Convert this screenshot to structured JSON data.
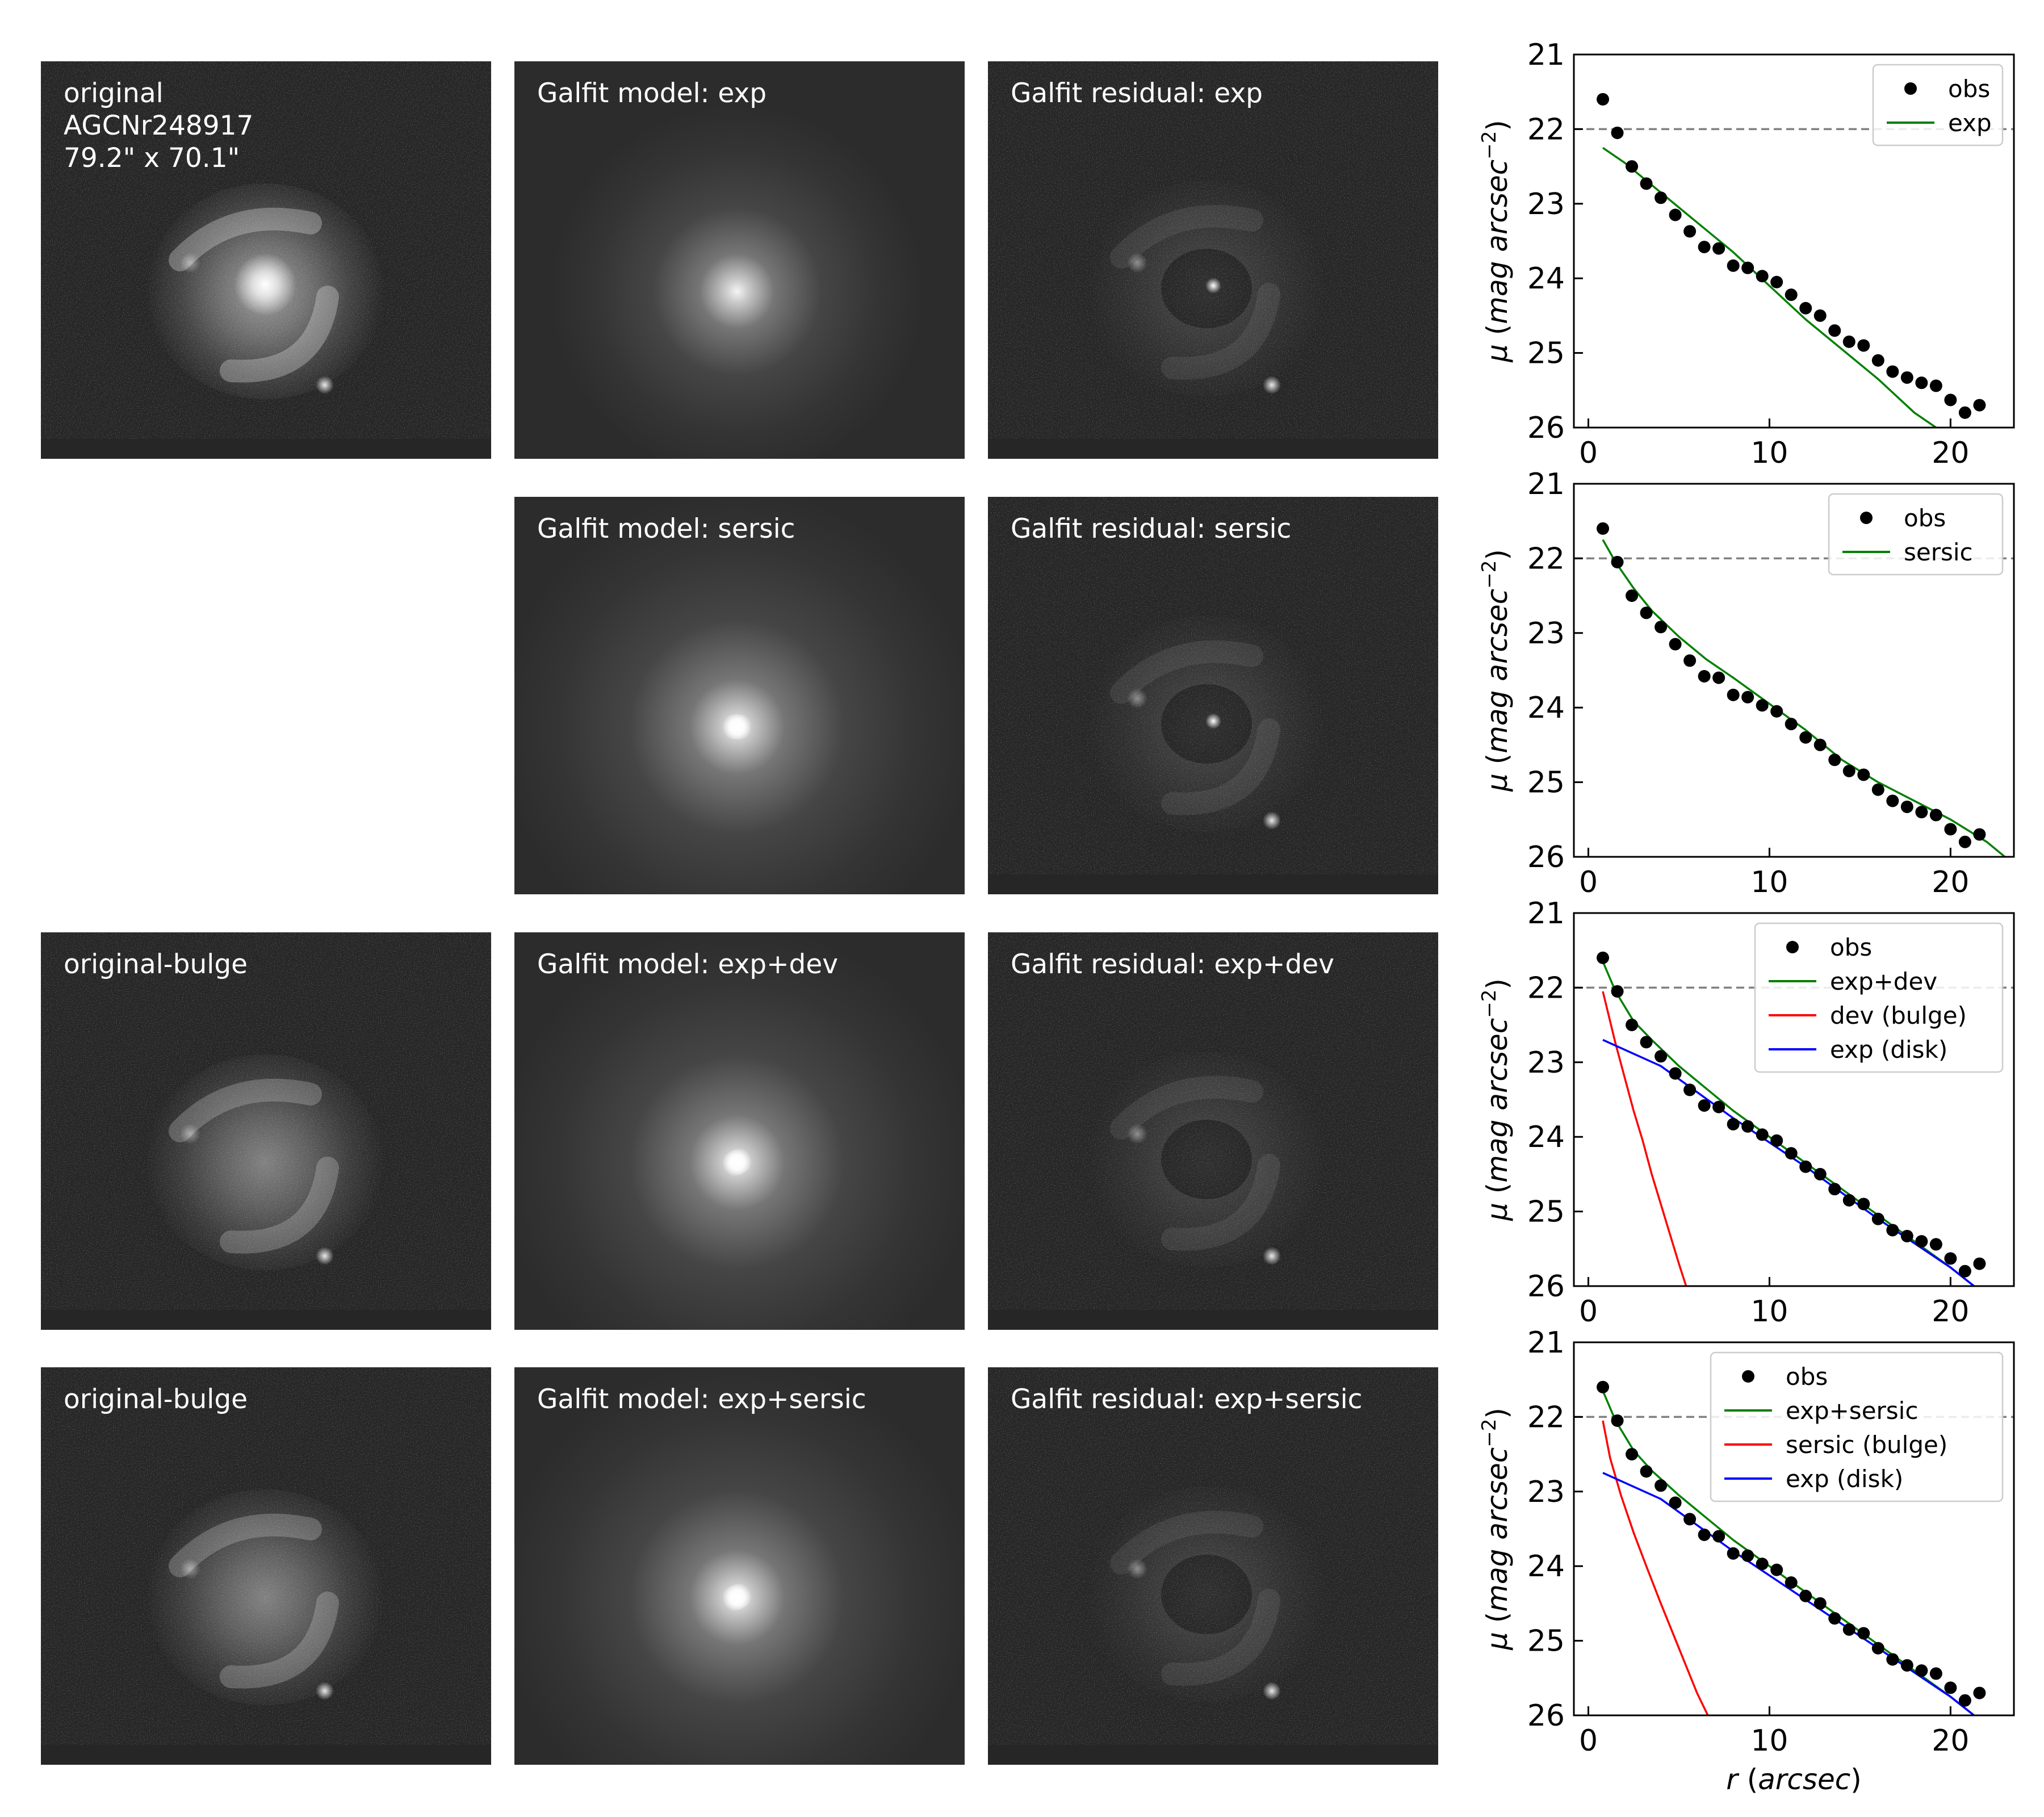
{
  "figure": {
    "galaxy_name": "AGCNr248917",
    "angular_size": "79.2\" x 70.1\""
  },
  "panels": [
    {
      "row": 0,
      "col": 0,
      "kind": "original",
      "labels": [
        "original",
        "AGCNr248917",
        "79.2\" x 70.1\""
      ]
    },
    {
      "row": 0,
      "col": 1,
      "kind": "model_exp",
      "labels": [
        "Galfit model: exp"
      ]
    },
    {
      "row": 0,
      "col": 2,
      "kind": "residual_exp",
      "labels": [
        "Galfit residual: exp"
      ]
    },
    {
      "row": 1,
      "col": 1,
      "kind": "model_sersic",
      "labels": [
        "Galfit model: sersic"
      ]
    },
    {
      "row": 1,
      "col": 2,
      "kind": "residual_sersic",
      "labels": [
        "Galfit residual: sersic"
      ]
    },
    {
      "row": 2,
      "col": 0,
      "kind": "original_bulge",
      "labels": [
        "original-bulge"
      ]
    },
    {
      "row": 2,
      "col": 1,
      "kind": "model_expdev",
      "labels": [
        "Galfit model: exp+dev"
      ]
    },
    {
      "row": 2,
      "col": 2,
      "kind": "residual_expdev",
      "labels": [
        "Galfit residual: exp+dev"
      ]
    },
    {
      "row": 3,
      "col": 0,
      "kind": "original_bulge",
      "labels": [
        "original-bulge"
      ]
    },
    {
      "row": 3,
      "col": 1,
      "kind": "model_expsersic",
      "labels": [
        "Galfit model: exp+sersic"
      ]
    },
    {
      "row": 3,
      "col": 2,
      "kind": "residual_expsersic",
      "labels": [
        "Galfit residual: exp+sersic"
      ]
    }
  ],
  "chart_data": [
    {
      "type": "line",
      "ylabel": "μ (mag arcsec⁻²)",
      "xlabel": "",
      "xlim": [
        -0.8,
        23.5
      ],
      "ylim": [
        26,
        21
      ],
      "y_inverted": true,
      "xticks": [
        0,
        10,
        20
      ],
      "yticks": [
        21,
        22,
        23,
        24,
        25,
        26
      ],
      "hline": {
        "y": 22,
        "style": "dashed",
        "color": "#808080"
      },
      "legend_position": "top-right",
      "series": [
        {
          "name": "obs",
          "kind": "scatter",
          "color": "#000000",
          "x": [
            0.8,
            1.6,
            2.4,
            3.2,
            4.0,
            4.8,
            5.6,
            6.4,
            7.2,
            8.0,
            8.8,
            9.6,
            10.4,
            11.2,
            12.0,
            12.8,
            13.6,
            14.4,
            15.2,
            16.0,
            16.8,
            17.6,
            18.4,
            19.2,
            20.0,
            20.8,
            21.6
          ],
          "y": [
            21.6,
            22.05,
            22.5,
            22.73,
            22.92,
            23.15,
            23.37,
            23.58,
            23.6,
            23.83,
            23.86,
            23.97,
            24.05,
            24.22,
            24.4,
            24.5,
            24.7,
            24.85,
            24.9,
            25.1,
            25.25,
            25.33,
            25.4,
            25.44,
            25.63,
            25.8,
            25.7
          ]
        },
        {
          "name": "exp",
          "kind": "line",
          "color": "#008000",
          "x": [
            0.8,
            2,
            4,
            6,
            8,
            10,
            12,
            14,
            16,
            18,
            19.2
          ],
          "y": [
            22.25,
            22.45,
            22.85,
            23.25,
            23.65,
            24.1,
            24.55,
            24.95,
            25.35,
            25.8,
            26.0
          ]
        }
      ]
    },
    {
      "type": "line",
      "ylabel": "μ (mag arcsec⁻²)",
      "xlabel": "",
      "xlim": [
        -0.8,
        23.5
      ],
      "ylim": [
        26,
        21
      ],
      "y_inverted": true,
      "xticks": [
        0,
        10,
        20
      ],
      "yticks": [
        21,
        22,
        23,
        24,
        25,
        26
      ],
      "hline": {
        "y": 22,
        "style": "dashed",
        "color": "#808080"
      },
      "legend_position": "top-right",
      "series": [
        {
          "name": "obs",
          "kind": "scatter",
          "color": "#000000",
          "x": [
            0.8,
            1.6,
            2.4,
            3.2,
            4.0,
            4.8,
            5.6,
            6.4,
            7.2,
            8.0,
            8.8,
            9.6,
            10.4,
            11.2,
            12.0,
            12.8,
            13.6,
            14.4,
            15.2,
            16.0,
            16.8,
            17.6,
            18.4,
            19.2,
            20.0,
            20.8,
            21.6
          ],
          "y": [
            21.6,
            22.05,
            22.5,
            22.73,
            22.92,
            23.15,
            23.37,
            23.58,
            23.6,
            23.83,
            23.86,
            23.97,
            24.05,
            24.22,
            24.4,
            24.5,
            24.7,
            24.85,
            24.9,
            25.1,
            25.25,
            25.33,
            25.4,
            25.44,
            25.63,
            25.8,
            25.7
          ]
        },
        {
          "name": "sersic",
          "kind": "line",
          "color": "#008000",
          "x": [
            0.8,
            1.5,
            2.5,
            3.5,
            5,
            6.5,
            8,
            10,
            12,
            14,
            16,
            18,
            20,
            22,
            23
          ],
          "y": [
            21.75,
            22.05,
            22.4,
            22.7,
            23.05,
            23.35,
            23.6,
            23.95,
            24.3,
            24.7,
            25.0,
            25.25,
            25.5,
            25.8,
            26.0
          ]
        }
      ]
    },
    {
      "type": "line",
      "ylabel": "μ (mag arcsec⁻²)",
      "xlabel": "",
      "xlim": [
        -0.8,
        23.5
      ],
      "ylim": [
        26,
        21
      ],
      "y_inverted": true,
      "xticks": [
        0,
        10,
        20
      ],
      "yticks": [
        21,
        22,
        23,
        24,
        25,
        26
      ],
      "hline": {
        "y": 22,
        "style": "dashed",
        "color": "#808080"
      },
      "legend_position": "top-right",
      "series": [
        {
          "name": "obs",
          "kind": "scatter",
          "color": "#000000",
          "x": [
            0.8,
            1.6,
            2.4,
            3.2,
            4.0,
            4.8,
            5.6,
            6.4,
            7.2,
            8.0,
            8.8,
            9.6,
            10.4,
            11.2,
            12.0,
            12.8,
            13.6,
            14.4,
            15.2,
            16.0,
            16.8,
            17.6,
            18.4,
            19.2,
            20.0,
            20.8,
            21.6
          ],
          "y": [
            21.6,
            22.05,
            22.5,
            22.73,
            22.92,
            23.15,
            23.37,
            23.58,
            23.6,
            23.83,
            23.86,
            23.97,
            24.05,
            24.22,
            24.4,
            24.5,
            24.7,
            24.85,
            24.9,
            25.1,
            25.25,
            25.33,
            25.4,
            25.44,
            25.63,
            25.8,
            25.7
          ]
        },
        {
          "name": "exp+dev",
          "kind": "line",
          "color": "#008000",
          "x": [
            0.8,
            1.5,
            2.5,
            3.5,
            5,
            6.5,
            8,
            10,
            12,
            14,
            16,
            18,
            20,
            21.3
          ],
          "y": [
            21.65,
            22.05,
            22.45,
            22.7,
            23.05,
            23.35,
            23.65,
            24.0,
            24.35,
            24.7,
            25.05,
            25.4,
            25.75,
            26.0
          ]
        },
        {
          "name": "dev (bulge)",
          "kind": "line",
          "color": "#ff0000",
          "x": [
            0.8,
            1.5,
            2,
            2.5,
            3,
            3.5,
            4,
            4.5,
            5,
            5.4
          ],
          "y": [
            22.05,
            22.75,
            23.2,
            23.65,
            24.05,
            24.5,
            24.9,
            25.3,
            25.7,
            26.0
          ]
        },
        {
          "name": "exp (disk)",
          "kind": "line",
          "color": "#0000ff",
          "x": [
            0.8,
            4,
            8,
            12,
            16,
            20,
            21.3
          ],
          "y": [
            22.7,
            23.05,
            23.75,
            24.4,
            25.1,
            25.75,
            26.0
          ]
        }
      ]
    },
    {
      "type": "line",
      "ylabel": "μ (mag arcsec⁻²)",
      "xlabel": "r (arcsec)",
      "xlim": [
        -0.8,
        23.5
      ],
      "ylim": [
        26,
        21
      ],
      "y_inverted": true,
      "xticks": [
        0,
        10,
        20
      ],
      "yticks": [
        21,
        22,
        23,
        24,
        25,
        26
      ],
      "hline": {
        "y": 22,
        "style": "dashed",
        "color": "#808080"
      },
      "legend_position": "top-right",
      "series": [
        {
          "name": "obs",
          "kind": "scatter",
          "color": "#000000",
          "x": [
            0.8,
            1.6,
            2.4,
            3.2,
            4.0,
            4.8,
            5.6,
            6.4,
            7.2,
            8.0,
            8.8,
            9.6,
            10.4,
            11.2,
            12.0,
            12.8,
            13.6,
            14.4,
            15.2,
            16.0,
            16.8,
            17.6,
            18.4,
            19.2,
            20.0,
            20.8,
            21.6
          ],
          "y": [
            21.6,
            22.05,
            22.5,
            22.73,
            22.92,
            23.15,
            23.37,
            23.58,
            23.6,
            23.83,
            23.86,
            23.97,
            24.05,
            24.22,
            24.4,
            24.5,
            24.7,
            24.85,
            24.9,
            25.1,
            25.25,
            25.33,
            25.4,
            25.44,
            25.63,
            25.8,
            25.7
          ]
        },
        {
          "name": "exp+sersic",
          "kind": "line",
          "color": "#008000",
          "x": [
            0.8,
            1.5,
            2.5,
            3.5,
            5,
            6.5,
            8,
            10,
            12,
            14,
            16,
            18,
            20,
            21.3
          ],
          "y": [
            21.65,
            22.05,
            22.45,
            22.72,
            23.05,
            23.35,
            23.65,
            24.0,
            24.35,
            24.7,
            25.05,
            25.4,
            25.75,
            26.0
          ]
        },
        {
          "name": "sersic (bulge)",
          "kind": "line",
          "color": "#ff0000",
          "x": [
            0.8,
            1.2,
            1.8,
            2.5,
            3.2,
            4,
            5,
            6,
            6.6
          ],
          "y": [
            22.05,
            22.55,
            23.05,
            23.55,
            24.0,
            24.5,
            25.1,
            25.7,
            26.0
          ]
        },
        {
          "name": "exp (disk)",
          "kind": "line",
          "color": "#0000ff",
          "x": [
            0.8,
            4,
            8,
            12,
            16,
            20,
            21.3
          ],
          "y": [
            22.75,
            23.1,
            23.8,
            24.45,
            25.1,
            25.75,
            26.0
          ]
        }
      ]
    }
  ]
}
